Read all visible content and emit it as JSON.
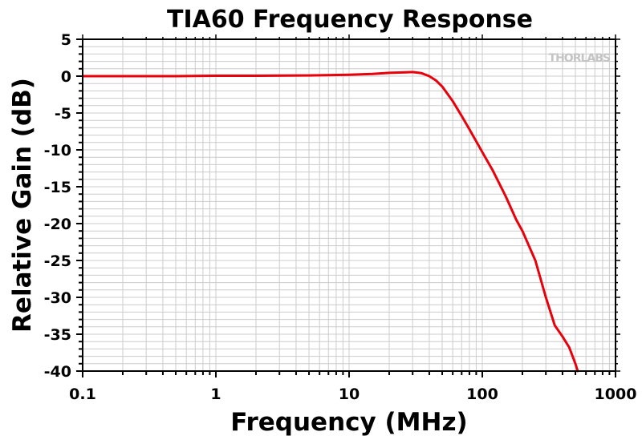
{
  "chart_data": {
    "type": "line",
    "title": "TIA60 Frequency Response",
    "xlabel": "Frequency (MHz)",
    "ylabel": "Relative Gain (dB)",
    "xscale": "log",
    "xlim": [
      0.1,
      1000
    ],
    "ylim": [
      -40,
      5
    ],
    "x_ticks": [
      "0.1",
      "1",
      "10",
      "100",
      "1000"
    ],
    "y_ticks": [
      "5",
      "0",
      "-5",
      "-10",
      "-15",
      "-20",
      "-25",
      "-30",
      "-35",
      "-40"
    ],
    "grid": true,
    "logo": "THORLABS",
    "series": [
      {
        "color": "#e8000b",
        "x": [
          0.1,
          0.2,
          0.5,
          1,
          2,
          5,
          10,
          15,
          20,
          25,
          30,
          35,
          40,
          45,
          50,
          60,
          70,
          80,
          100,
          120,
          150,
          180,
          200,
          250,
          300,
          350,
          400,
          450,
          500,
          520
        ],
        "y": [
          0.0,
          0.0,
          0.0,
          0.05,
          0.05,
          0.1,
          0.2,
          0.3,
          0.45,
          0.5,
          0.55,
          0.4,
          0.0,
          -0.6,
          -1.4,
          -3.4,
          -5.4,
          -7.2,
          -10.3,
          -12.8,
          -16.3,
          -19.5,
          -21.0,
          -25.0,
          -30.0,
          -33.8,
          -35.3,
          -36.8,
          -39.0,
          -40.0
        ]
      }
    ]
  }
}
